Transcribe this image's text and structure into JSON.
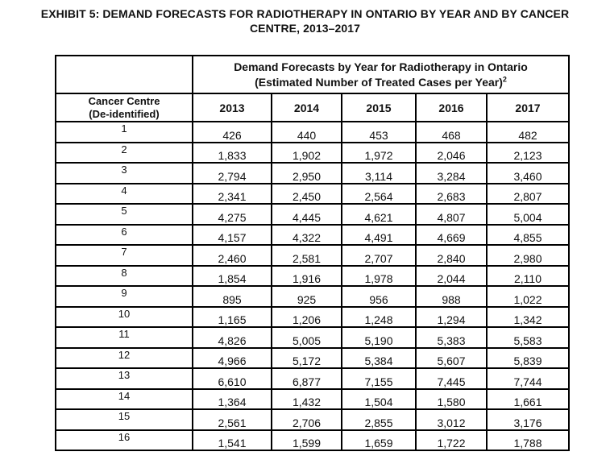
{
  "colors": {
    "background": "#ffffff",
    "text": "#1a1a1a",
    "border": "#000000"
  },
  "title": {
    "line1": "EXHIBIT 5: DEMAND FORECASTS FOR RADIOTHERAPY IN ONTARIO BY YEAR AND BY CANCER",
    "line2": "CENTRE, 2013–2017"
  },
  "table": {
    "spanning_header": {
      "line1": "Demand Forecasts by Year for Radiotherapy in Ontario",
      "line2": "(Estimated Number of Treated Cases per Year)",
      "superscript": "2"
    },
    "row_header": {
      "line1": "Cancer Centre",
      "line2": "(De-identified)"
    },
    "years": [
      "2013",
      "2014",
      "2015",
      "2016",
      "2017"
    ],
    "rows": [
      {
        "centre": "1",
        "values": [
          "426",
          "440",
          "453",
          "468",
          "482"
        ]
      },
      {
        "centre": "2",
        "values": [
          "1,833",
          "1,902",
          "1,972",
          "2,046",
          "2,123"
        ]
      },
      {
        "centre": "3",
        "values": [
          "2,794",
          "2,950",
          "3,114",
          "3,284",
          "3,460"
        ]
      },
      {
        "centre": "4",
        "values": [
          "2,341",
          "2,450",
          "2,564",
          "2,683",
          "2,807"
        ]
      },
      {
        "centre": "5",
        "values": [
          "4,275",
          "4,445",
          "4,621",
          "4,807",
          "5,004"
        ]
      },
      {
        "centre": "6",
        "values": [
          "4,157",
          "4,322",
          "4,491",
          "4,669",
          "4,855"
        ]
      },
      {
        "centre": "7",
        "values": [
          "2,460",
          "2,581",
          "2,707",
          "2,840",
          "2,980"
        ]
      },
      {
        "centre": "8",
        "values": [
          "1,854",
          "1,916",
          "1,978",
          "2,044",
          "2,110"
        ]
      },
      {
        "centre": "9",
        "values": [
          "895",
          "925",
          "956",
          "988",
          "1,022"
        ]
      },
      {
        "centre": "10",
        "values": [
          "1,165",
          "1,206",
          "1,248",
          "1,294",
          "1,342"
        ]
      },
      {
        "centre": "11",
        "values": [
          "4,826",
          "5,005",
          "5,190",
          "5,383",
          "5,583"
        ]
      },
      {
        "centre": "12",
        "values": [
          "4,966",
          "5,172",
          "5,384",
          "5,607",
          "5,839"
        ]
      },
      {
        "centre": "13",
        "values": [
          "6,610",
          "6,877",
          "7,155",
          "7,445",
          "7,744"
        ]
      },
      {
        "centre": "14",
        "values": [
          "1,364",
          "1,432",
          "1,504",
          "1,580",
          "1,661"
        ]
      },
      {
        "centre": "15",
        "values": [
          "2,561",
          "2,706",
          "2,855",
          "3,012",
          "3,176"
        ]
      },
      {
        "centre": "16",
        "values": [
          "1,541",
          "1,599",
          "1,659",
          "1,722",
          "1,788"
        ]
      }
    ]
  }
}
